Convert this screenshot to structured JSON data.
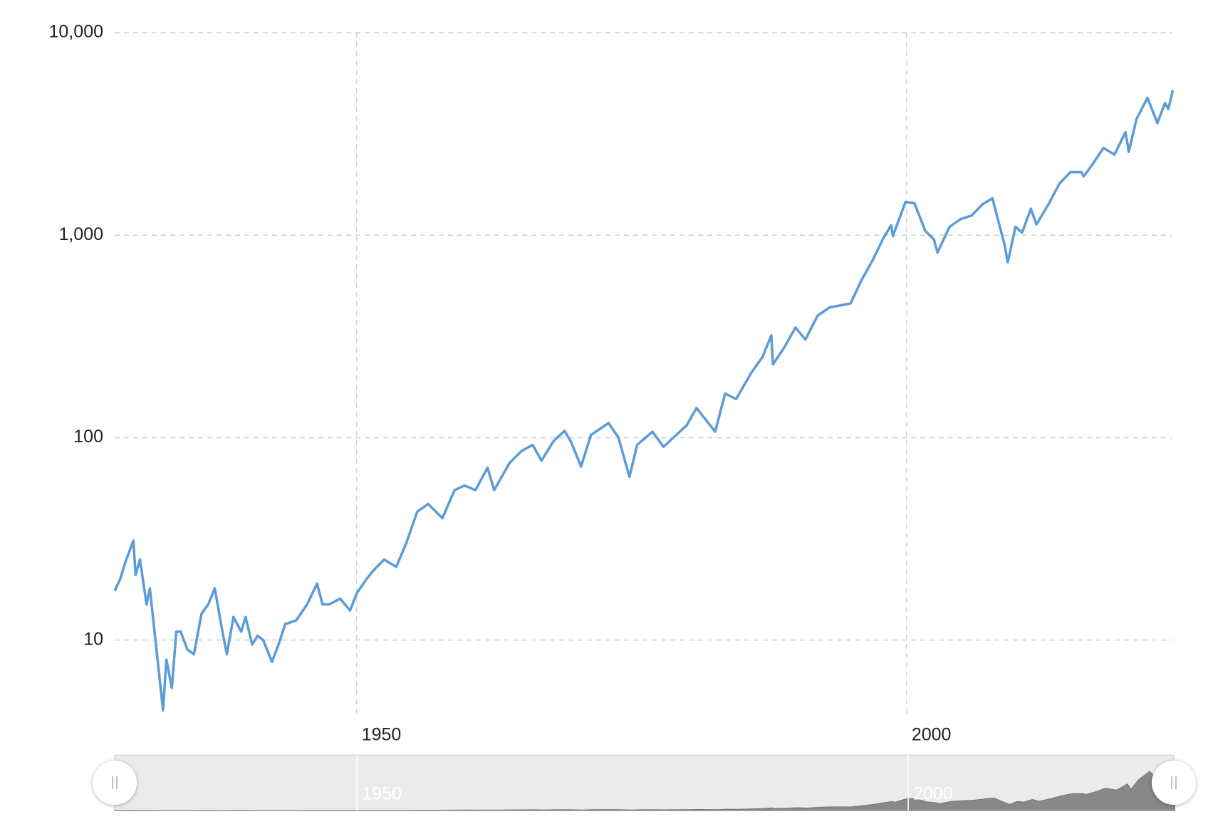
{
  "chart_data": {
    "type": "line",
    "log_scale": true,
    "grid": true,
    "color": "#5b9bd8",
    "navigator_color": "#888888",
    "xlim": [
      1928,
      2024.1
    ],
    "ylim": [
      4.4,
      10000
    ],
    "xticks": [
      1950,
      2000
    ],
    "yticks": [
      10,
      100,
      {
        "value": 1000,
        "label": "1,000"
      },
      {
        "value": 10000,
        "label": "10,000"
      }
    ],
    "x": [
      1928.0,
      1928.5,
      1929.0,
      1929.7,
      1929.9,
      1930.3,
      1930.9,
      1931.2,
      1931.9,
      1932.4,
      1932.7,
      1933.2,
      1933.6,
      1934.0,
      1934.6,
      1935.2,
      1935.9,
      1936.5,
      1937.1,
      1937.8,
      1938.2,
      1938.8,
      1939.5,
      1939.9,
      1940.5,
      1941.0,
      1941.5,
      1942.3,
      1942.9,
      1943.5,
      1944.5,
      1945.5,
      1946.4,
      1946.9,
      1947.5,
      1948.5,
      1949.4,
      1950.0,
      1950.9,
      1951.5,
      1952.5,
      1953.6,
      1954.5,
      1955.5,
      1956.5,
      1957.8,
      1958.9,
      1959.8,
      1960.8,
      1961.9,
      1962.5,
      1963.9,
      1965.0,
      1966.0,
      1966.8,
      1967.9,
      1968.9,
      1969.5,
      1970.4,
      1971.3,
      1972.9,
      1973.8,
      1974.8,
      1975.5,
      1976.9,
      1977.9,
      1978.8,
      1980.0,
      1980.9,
      1982.6,
      1983.5,
      1984.5,
      1985.9,
      1986.9,
      1987.7,
      1987.85,
      1988.9,
      1989.9,
      1990.8,
      1991.9,
      1993.0,
      1994.9,
      1995.9,
      1996.9,
      1997.9,
      1998.6,
      1998.75,
      1999.9,
      2000.7,
      2001.7,
      2002.5,
      2002.8,
      2003.9,
      2004.9,
      2005.9,
      2006.9,
      2007.8,
      2008.9,
      2009.2,
      2009.9,
      2010.5,
      2011.3,
      2011.8,
      2012.9,
      2013.9,
      2014.9,
      2015.9,
      2016.1,
      2016.9,
      2017.9,
      2018.9,
      2019.9,
      2020.2,
      2020.9,
      2021.9,
      2022.8,
      2023.5,
      2023.8,
      2024.2
    ],
    "values": [
      17.5,
      20,
      24.5,
      31,
      21,
      25,
      15,
      18,
      8,
      4.5,
      8,
      5.8,
      11,
      11,
      9,
      8.5,
      13.5,
      15,
      18,
      11,
      8.5,
      13,
      11,
      13,
      9.5,
      10.5,
      10,
      7.8,
      9.5,
      12,
      12.5,
      15,
      19,
      15,
      15,
      16,
      14,
      17,
      20,
      22,
      25,
      23,
      30,
      43,
      47,
      40,
      55,
      58,
      55,
      71,
      55,
      75,
      86,
      92,
      77,
      96,
      108,
      95,
      72,
      103,
      118,
      100,
      64,
      92,
      107,
      90,
      100,
      115,
      140,
      107,
      165,
      155,
      210,
      250,
      320,
      230,
      280,
      350,
      305,
      400,
      440,
      460,
      600,
      750,
      970,
      1120,
      990,
      1460,
      1440,
      1050,
      950,
      820,
      1100,
      1200,
      1250,
      1420,
      1520,
      900,
      735,
      1100,
      1030,
      1350,
      1130,
      1420,
      1800,
      2050,
      2050,
      1950,
      2240,
      2700,
      2500,
      3230,
      2580,
      3750,
      4770,
      3580,
      4500,
      4200,
      5200
    ]
  }
}
